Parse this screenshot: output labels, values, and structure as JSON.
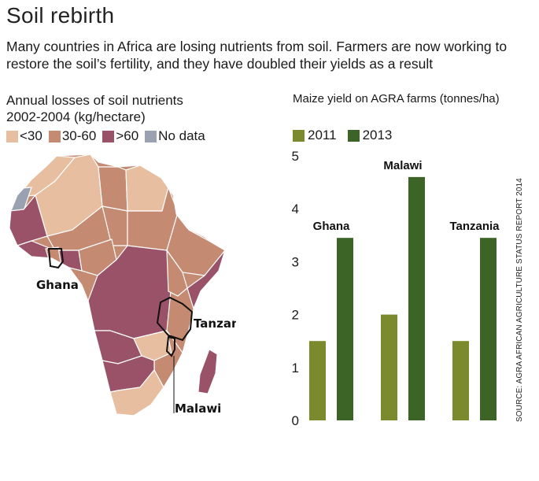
{
  "header": {
    "title": "Soil rebirth",
    "subtitle": "Many countries in Africa are losing nutrients from soil. Farmers are now working to restore the soil’s fertility, and they have doubled their yields as a result"
  },
  "map": {
    "title_line1": "Annual losses of soil nutrients",
    "title_line2": "2002-2004 (kg/hectare)",
    "legend": [
      {
        "label": "<30",
        "color": "#e8bea0"
      },
      {
        "label": "30-60",
        "color": "#c48a72"
      },
      {
        "label": ">60",
        "color": "#9a5268"
      },
      {
        "label": "No data",
        "color": "#9aa2b2"
      }
    ],
    "labels": {
      "ghana": "Ghana",
      "tanzania": "Tanzania",
      "malawi": "Malawi"
    }
  },
  "chart_data": {
    "type": "bar",
    "title": "Maize yield on AGRA farms (tonnes/ha)",
    "categories": [
      "Ghana",
      "Malawi",
      "Tanzania"
    ],
    "series": [
      {
        "name": "2011",
        "values": [
          1.5,
          2.0,
          1.5
        ],
        "color": "#7a8a2c"
      },
      {
        "name": "2013",
        "values": [
          3.45,
          4.6,
          3.45
        ],
        "color": "#3b6426"
      }
    ],
    "ylim": [
      0,
      5
    ],
    "yticks": [
      0,
      1,
      2,
      3,
      4,
      5
    ],
    "grid": false,
    "legend_position": "top-left"
  },
  "source": "SOURCE: AGRA AFRICAN AGRICULTURE STATUS REPORT 2014"
}
